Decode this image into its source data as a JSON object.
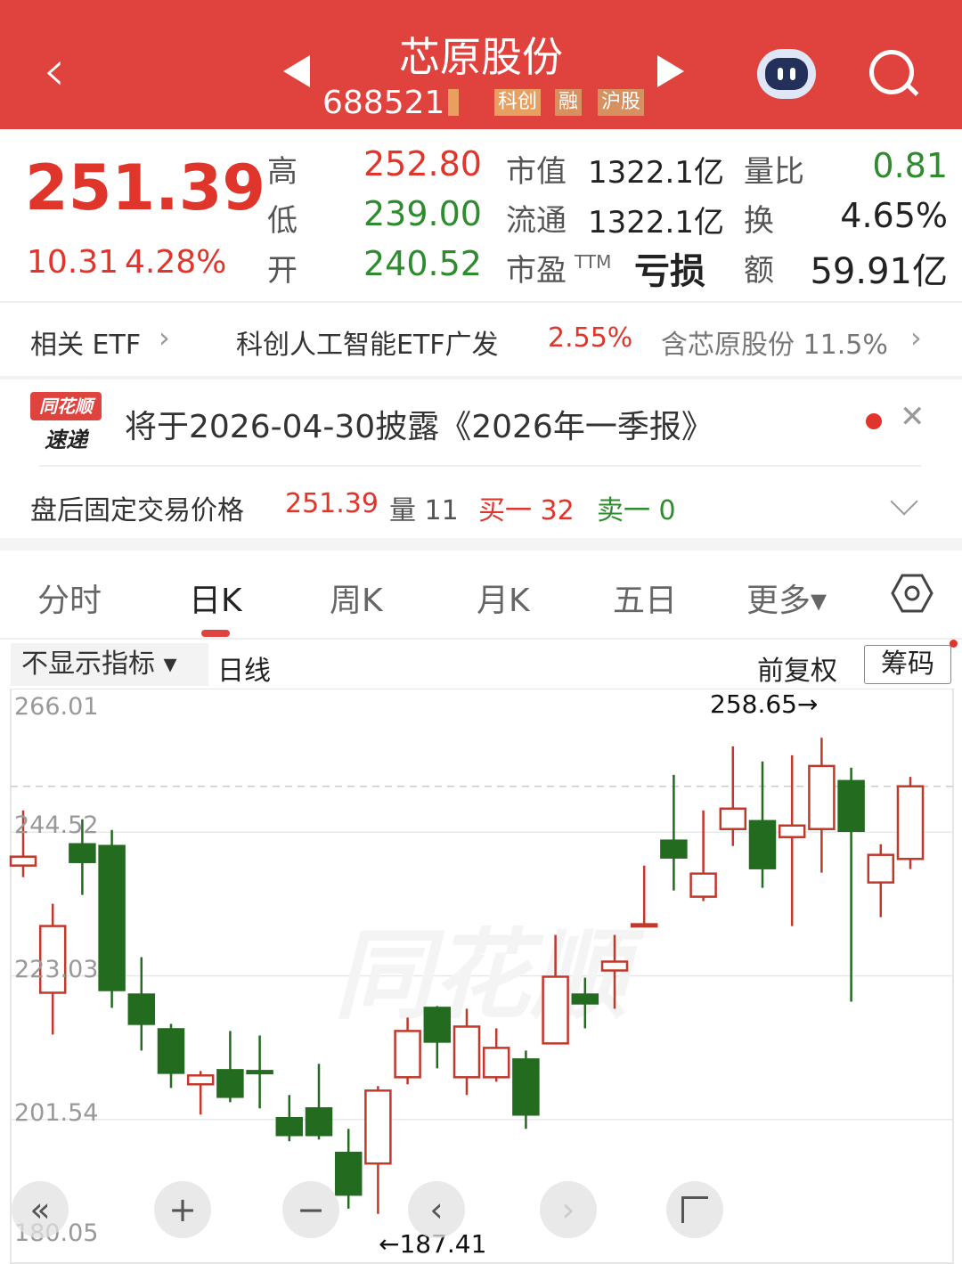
{
  "header": {
    "title": "芯原股份",
    "code": "688521",
    "tags": [
      "科创",
      "融",
      "沪股"
    ],
    "bg": "#e0433d",
    "icons": [
      "back-chevron-icon",
      "prev-triangle-icon",
      "next-triangle-icon",
      "robot-assistant-icon",
      "search-icon"
    ]
  },
  "quote": {
    "price": "251.39",
    "change": "10.31",
    "change_pct": "4.28%",
    "stats": [
      {
        "label": "高",
        "value": "252.80",
        "color": "red"
      },
      {
        "label": "低",
        "value": "239.00",
        "color": "green"
      },
      {
        "label": "开",
        "value": "240.52",
        "color": "green"
      }
    ],
    "stats2": [
      {
        "label": "市值",
        "value": "1322.1亿"
      },
      {
        "label": "流通",
        "value": "1322.1亿"
      },
      {
        "label": "市盈",
        "sup": "TTM",
        "value": "亏损"
      }
    ],
    "stats3": [
      {
        "label": "量比",
        "value": "0.81",
        "color": "green"
      },
      {
        "label": "换",
        "value": "4.65%"
      },
      {
        "label": "额",
        "value": "59.91亿"
      }
    ]
  },
  "etf": {
    "label": "相关 ETF",
    "name": "科创人工智能ETF广发",
    "pct": "2.55%",
    "holding": "含芯原股份 11.5%"
  },
  "notice": {
    "logo_top": "同花顺",
    "logo_bottom": "速递",
    "text": "将于2026-04-30披露《2026年一季报》"
  },
  "after_hours": {
    "label": "盘后固定交易价格",
    "price": "251.39",
    "vol": "量 11",
    "buy": "买一 32",
    "sell": "卖一 0"
  },
  "tabs": [
    {
      "label": "分时"
    },
    {
      "label": "日K",
      "active": true
    },
    {
      "label": "周K"
    },
    {
      "label": "月K"
    },
    {
      "label": "五日"
    },
    {
      "label": "更多▾"
    }
  ],
  "toolbar": {
    "indicator": "不显示指标 ▾",
    "period": "日线",
    "adjust": "前复权",
    "chips": "筹码"
  },
  "chart_data": {
    "type": "candlestick",
    "ylim": [
      180.05,
      266.01
    ],
    "yticks": [
      "266.01",
      "244.52",
      "223.03",
      "201.54",
      "180.05"
    ],
    "current_price_line": 251.39,
    "max_label": "258.65→",
    "min_label": "←187.41",
    "up_color": "#c0392b",
    "down_color": "#236b1f",
    "ohlc": [
      [
        239.53,
        247.78,
        237.8,
        240.86
      ],
      [
        220.5,
        233.81,
        214.25,
        230.48
      ],
      [
        242.72,
        246.45,
        235.14,
        240.06
      ],
      [
        242.46,
        244.85,
        218.24,
        220.9
      ],
      [
        220.23,
        225.82,
        211.85,
        215.84
      ],
      [
        215.04,
        215.84,
        206.26,
        208.52
      ],
      [
        206.8,
        208.79,
        202.27,
        208.13
      ],
      [
        208.92,
        214.78,
        204.13,
        204.93
      ],
      [
        208.79,
        214.11,
        203.2,
        208.66
      ],
      [
        201.74,
        205.2,
        198.28,
        199.21
      ],
      [
        203.2,
        209.86,
        198.54,
        199.21
      ],
      [
        196.55,
        200.14,
        188.2,
        190.29
      ],
      [
        194.95,
        206.53,
        187.41,
        205.86
      ],
      [
        207.86,
        216.78,
        206.8,
        214.78
      ],
      [
        218.24,
        218.51,
        209.19,
        213.18
      ],
      [
        207.86,
        218.11,
        205.2,
        215.44
      ],
      [
        207.86,
        215.18,
        207.19,
        212.25
      ],
      [
        210.52,
        211.85,
        200.14,
        202.27
      ],
      [
        212.92,
        229.15,
        212.92,
        222.9
      ],
      [
        220.23,
        222.76,
        215.18,
        218.9
      ],
      [
        223.83,
        229.15,
        218.11,
        225.16
      ],
      [
        230.48,
        239.53,
        230.48,
        230.75
      ],
      [
        243.26,
        253.1,
        235.8,
        240.73
      ],
      [
        234.87,
        247.78,
        234.21,
        238.33
      ],
      [
        244.99,
        257.36,
        242.46,
        248.05
      ],
      [
        246.18,
        255.1,
        236.2,
        239.13
      ],
      [
        243.79,
        256.03,
        230.48,
        245.52
      ],
      [
        244.99,
        258.65,
        238.47,
        254.43
      ],
      [
        252.17,
        254.17,
        219.17,
        244.72
      ],
      [
        237.0,
        242.72,
        231.81,
        241.13
      ],
      [
        240.52,
        252.8,
        239.0,
        251.39
      ]
    ]
  },
  "chart_controls": [
    "«",
    "+",
    "−",
    "‹",
    "›",
    "⌐"
  ]
}
